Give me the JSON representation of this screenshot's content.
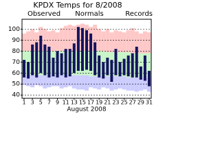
{
  "chart_data": {
    "type": "range_bar",
    "title": "KPDX Temps for 8/2008",
    "x_label": "August 2008",
    "x": [
      1,
      2,
      3,
      4,
      5,
      6,
      7,
      8,
      9,
      10,
      11,
      12,
      13,
      14,
      15,
      16,
      17,
      18,
      19,
      20,
      21,
      22,
      23,
      24,
      25,
      26,
      27,
      28,
      29,
      30,
      31
    ],
    "xlim": [
      0.5,
      31.5
    ],
    "xticks": [
      1,
      3,
      5,
      7,
      9,
      11,
      13,
      15,
      17,
      19,
      21,
      23,
      25,
      27,
      29,
      31
    ],
    "ylim": [
      37,
      109
    ],
    "yticks": [
      40,
      50,
      60,
      70,
      80,
      90,
      100
    ],
    "grid": true,
    "series": [
      {
        "name": "Observed",
        "color": "#14145e",
        "high": [
          72,
          70,
          86,
          88,
          94,
          86,
          84,
          74,
          80,
          78,
          82,
          82,
          87,
          102,
          101,
          99,
          96,
          88,
          76,
          70,
          74,
          72,
          82,
          70,
          73,
          76,
          78,
          84,
          66,
          76,
          62
        ],
        "low": [
          56,
          55,
          58,
          56,
          60,
          58,
          56,
          57,
          56,
          58,
          56,
          57,
          60,
          62,
          62,
          63,
          62,
          58,
          56,
          55,
          58,
          52,
          58,
          57,
          58,
          57,
          56,
          56,
          54,
          53,
          48
        ]
      },
      {
        "name": "Normals",
        "color": "#00a000",
        "band_color": "#c8f5c8",
        "high": [
          80,
          80,
          80,
          80,
          80,
          80,
          80,
          80,
          80,
          80,
          80,
          80,
          80,
          80,
          80,
          80,
          80,
          80,
          80,
          80,
          79,
          79,
          79,
          79,
          79,
          79,
          78,
          78,
          78,
          78,
          78
        ],
        "low": [
          58,
          58,
          58,
          58,
          58,
          58,
          58,
          58,
          58,
          58,
          58,
          58,
          58,
          58,
          58,
          58,
          57,
          57,
          57,
          57,
          57,
          57,
          57,
          57,
          57,
          56,
          56,
          56,
          56,
          56,
          56
        ]
      },
      {
        "name": "Records",
        "color": "#c080e0",
        "band_color": "#ffc8c8",
        "low_band_color": "#ccccff",
        "high": [
          96,
          98,
          100,
          97,
          102,
          100,
          98,
          99,
          97,
          101,
          103,
          104,
          103,
          104,
          105,
          104,
          102,
          104,
          100,
          98,
          100,
          97,
          99,
          98,
          97,
          99,
          101,
          98,
          96,
          98,
          97
        ],
        "low": [
          49,
          48,
          47,
          49,
          48,
          46,
          47,
          48,
          48,
          46,
          47,
          48,
          46,
          45,
          45,
          44,
          47,
          46,
          45,
          47,
          46,
          44,
          45,
          46,
          45,
          44,
          44,
          43,
          44,
          45,
          43
        ]
      }
    ]
  }
}
